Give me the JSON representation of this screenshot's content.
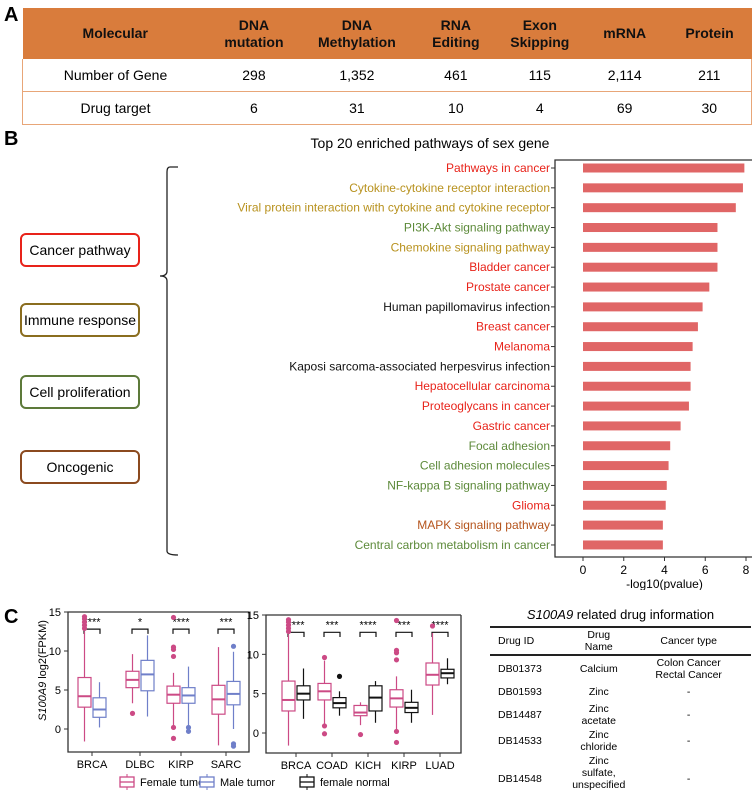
{
  "panels": {
    "a": "A",
    "b": "B",
    "c": "C"
  },
  "molecular_table": {
    "headers": [
      "Molecular",
      "DNA mutation",
      "DNA Methylation",
      "RNA Editing",
      "Exon Skipping",
      "mRNA",
      "Protein"
    ],
    "rows": [
      [
        "Number of Gene",
        "298",
        "1,352",
        "461",
        "115",
        "2,114",
        "211"
      ],
      [
        "Drug target",
        "6",
        "31",
        "10",
        "4",
        "69",
        "30"
      ]
    ],
    "header_color": "#d97c3c"
  },
  "categories": [
    {
      "label": "Cancer pathway",
      "color": "#e8231a"
    },
    {
      "label": "Immune response",
      "color": "#8a6d1f"
    },
    {
      "label": "Cell proliferation",
      "color": "#5d7a3a"
    },
    {
      "label": "Oncogenic",
      "color": "#8b4a1f"
    }
  ],
  "chart_data": [
    {
      "type": "bar",
      "orientation": "horizontal",
      "title": "Top 20 enriched pathways of sex gene",
      "xlabel": "-log10(pvalue)",
      "xlim": [
        0,
        8
      ],
      "xticks": [
        "0",
        "2",
        "4",
        "6",
        "8"
      ],
      "bar_color": "#e06666",
      "label_colors": {
        "cancer": "#e8231a",
        "immune": "#b8921f",
        "proliferation": "#5d8a3a",
        "oncogenic": "#b5541c",
        "other": "#111111"
      },
      "categories": [
        "Pathways in cancer",
        "Cytokine-cytokine receptor interaction",
        "Viral protein interaction with cytokine and cytokine receptor",
        "PI3K-Akt signaling pathway",
        "Chemokine signaling pathway",
        "Bladder cancer",
        "Prostate cancer",
        "Human papillomavirus infection",
        "Breast cancer",
        "Melanoma",
        "Kaposi sarcoma-associated herpesvirus infection",
        "Hepatocellular carcinoma",
        "Proteoglycans in cancer",
        "Gastric cancer",
        "Focal adhesion",
        "Cell adhesion molecules",
        "NF-kappa B signaling pathway",
        "Glioma",
        "MAPK signaling pathway",
        "Central carbon metabolism in cancer"
      ],
      "label_groups": [
        "cancer",
        "immune",
        "immune",
        "proliferation",
        "immune",
        "cancer",
        "cancer",
        "other",
        "cancer",
        "cancer",
        "other",
        "cancer",
        "cancer",
        "cancer",
        "proliferation",
        "proliferation",
        "proliferation",
        "cancer",
        "oncogenic",
        "proliferation"
      ],
      "values": [
        7.92,
        7.85,
        7.5,
        6.6,
        6.6,
        6.6,
        6.2,
        5.87,
        5.64,
        5.38,
        5.28,
        5.28,
        5.2,
        4.79,
        4.28,
        4.2,
        4.11,
        4.06,
        3.92,
        3.92
      ]
    },
    {
      "type": "box",
      "ylabel_italic": "S100A9",
      "ylabel": "log2(FPKM)",
      "ylim": [
        -3,
        15
      ],
      "yticks": [
        "0",
        "5",
        "10",
        "15"
      ],
      "categories": [
        "BRCA",
        "DLBC",
        "KIRP",
        "SARC"
      ],
      "significance": [
        "****",
        "*",
        "****",
        "***"
      ],
      "series": [
        {
          "name": "Female tumor",
          "color": "#cc4a85",
          "boxes": [
            {
              "min": -1.6,
              "q1": 2.8,
              "median": 4.2,
              "q3": 6.6,
              "max": 12.5,
              "outliers": [
                12.9,
                13.3,
                13.7,
                14.1,
                14.4
              ]
            },
            {
              "min": 3.3,
              "q1": 5.3,
              "median": 6.3,
              "q3": 7.4,
              "max": 9.6,
              "outliers": [
                2.0
              ]
            },
            {
              "min": 0.5,
              "q1": 3.3,
              "median": 4.4,
              "q3": 5.5,
              "max": 7.2,
              "outliers": [
                14.3,
                10.5,
                10.2,
                9.3,
                0.2,
                -1.2
              ]
            },
            {
              "min": -2.1,
              "q1": 1.9,
              "median": 3.8,
              "q3": 5.6,
              "max": 10.5,
              "outliers": []
            }
          ]
        },
        {
          "name": "Male tumor",
          "color": "#6f7fc9",
          "boxes": [
            {
              "min": 0.2,
              "q1": 1.5,
              "median": 2.5,
              "q3": 4.0,
              "max": 6.0,
              "outliers": []
            },
            {
              "min": 1.6,
              "q1": 4.9,
              "median": 7.0,
              "q3": 8.8,
              "max": 12.0,
              "outliers": []
            },
            {
              "min": 0.5,
              "q1": 3.3,
              "median": 4.3,
              "q3": 5.3,
              "max": 8.0,
              "outliers": [
                0.2,
                -0.3
              ]
            },
            {
              "min": 0.0,
              "q1": 3.1,
              "median": 4.5,
              "q3": 6.1,
              "max": 9.9,
              "outliers": [
                10.6,
                -1.9,
                -2.2
              ]
            }
          ]
        }
      ]
    },
    {
      "type": "box",
      "ylim": [
        -3,
        15
      ],
      "yticks": [
        "0",
        "5",
        "10",
        "15"
      ],
      "categories": [
        "BRCA",
        "COAD",
        "KICH",
        "KIRP",
        "LUAD"
      ],
      "significance": [
        "****",
        "***",
        "****",
        "***",
        "****"
      ],
      "series": [
        {
          "name": "Female tumor",
          "color": "#cc4a85",
          "boxes": [
            {
              "min": -1.6,
              "q1": 2.8,
              "median": 4.2,
              "q3": 6.6,
              "max": 12.5,
              "outliers": [
                12.9,
                13.3,
                13.7,
                14.1,
                14.4
              ]
            },
            {
              "min": 1.2,
              "q1": 4.2,
              "median": 5.3,
              "q3": 6.3,
              "max": 9.2,
              "outliers": [
                9.6,
                0.9,
                -0.1
              ]
            },
            {
              "min": 1.0,
              "q1": 2.2,
              "median": 2.6,
              "q3": 3.5,
              "max": 3.9,
              "outliers": [
                -0.2
              ]
            },
            {
              "min": 0.5,
              "q1": 3.3,
              "median": 4.4,
              "q3": 5.5,
              "max": 7.2,
              "outliers": [
                14.3,
                10.5,
                10.2,
                9.3,
                0.2,
                -1.2
              ]
            },
            {
              "min": 2.3,
              "q1": 6.1,
              "median": 7.4,
              "q3": 8.9,
              "max": 12.7,
              "outliers": [
                13.6
              ]
            }
          ]
        },
        {
          "name": "female normal",
          "color": "#111111",
          "boxes": [
            {
              "min": 1.8,
              "q1": 4.2,
              "median": 5.0,
              "q3": 6.0,
              "max": 8.2,
              "outliers": []
            },
            {
              "min": 2.2,
              "q1": 3.2,
              "median": 3.8,
              "q3": 4.5,
              "max": 5.3,
              "outliers": [
                7.2
              ]
            },
            {
              "min": 1.3,
              "q1": 2.8,
              "median": 4.5,
              "q3": 6.0,
              "max": 6.6,
              "outliers": []
            },
            {
              "min": 1.3,
              "q1": 2.6,
              "median": 3.2,
              "q3": 3.9,
              "max": 5.5,
              "outliers": []
            },
            {
              "min": 6.2,
              "q1": 7.0,
              "median": 7.6,
              "q3": 8.1,
              "max": 9.5,
              "outliers": []
            }
          ]
        }
      ]
    }
  ],
  "legend": [
    "Female tumor",
    "Male tumor",
    "female normal"
  ],
  "drug_table": {
    "title_italic": "S100A9",
    "title_rest": " related drug information",
    "headers": [
      "Drug ID",
      "Drug Name",
      "Cancer type"
    ],
    "rows": [
      [
        "DB01373",
        "Calcium",
        "Colon Cancer\nRectal Cancer"
      ],
      [
        "DB01593",
        "Zinc",
        "-"
      ],
      [
        "DB14487",
        "Zinc acetate",
        "-"
      ],
      [
        "DB14533",
        "Zinc chloride",
        "-"
      ],
      [
        "DB14548",
        "Zinc sulfate,\nunspecified form",
        "-"
      ]
    ]
  }
}
